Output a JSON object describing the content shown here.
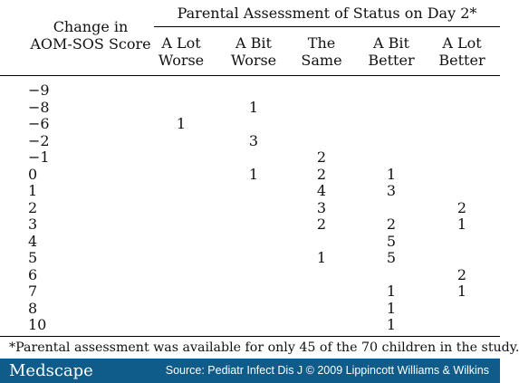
{
  "table": {
    "row_header": [
      "Change in",
      "AOM-SOS Score"
    ],
    "group_header": "Parental Assessment of Status on Day 2*",
    "columns": [
      [
        "A Lot",
        "Worse"
      ],
      [
        "A Bit",
        "Worse"
      ],
      [
        "The",
        "Same"
      ],
      [
        "A Bit",
        "Better"
      ],
      [
        "A Lot",
        "Better"
      ]
    ],
    "rows": [
      {
        "score": "−9",
        "cells": [
          "",
          "",
          "",
          "",
          ""
        ]
      },
      {
        "score": "−8",
        "cells": [
          "",
          "1",
          "",
          "",
          ""
        ]
      },
      {
        "score": "−6",
        "cells": [
          "1",
          "",
          "",
          "",
          ""
        ]
      },
      {
        "score": "−2",
        "cells": [
          "",
          "3",
          "",
          "",
          ""
        ]
      },
      {
        "score": "−1",
        "cells": [
          "",
          "",
          "2",
          "",
          ""
        ]
      },
      {
        "score": "0",
        "cells": [
          "",
          "1",
          "2",
          "1",
          ""
        ]
      },
      {
        "score": "1",
        "cells": [
          "",
          "",
          "4",
          "3",
          ""
        ]
      },
      {
        "score": "2",
        "cells": [
          "",
          "",
          "3",
          "",
          "2"
        ]
      },
      {
        "score": "3",
        "cells": [
          "",
          "",
          "2",
          "2",
          "1"
        ]
      },
      {
        "score": "4",
        "cells": [
          "",
          "",
          "",
          "5",
          ""
        ]
      },
      {
        "score": "5",
        "cells": [
          "",
          "",
          "1",
          "5",
          ""
        ]
      },
      {
        "score": "6",
        "cells": [
          "",
          "",
          "",
          "",
          "2"
        ]
      },
      {
        "score": "7",
        "cells": [
          "",
          "",
          "",
          "1",
          "1"
        ]
      },
      {
        "score": "8",
        "cells": [
          "",
          "",
          "",
          "1",
          ""
        ]
      },
      {
        "score": "10",
        "cells": [
          "",
          "",
          "",
          "1",
          ""
        ]
      }
    ],
    "footnote": "*Parental assessment was available for only 45 of the 70 children in the study."
  },
  "footer": {
    "logo": "Medscape",
    "source": "Source: Pediatr Infect Dis J © 2009 Lippincott Williams & Wilkins"
  },
  "colors": {
    "footer_bar": "#0f5b8a",
    "text": "#111111"
  }
}
